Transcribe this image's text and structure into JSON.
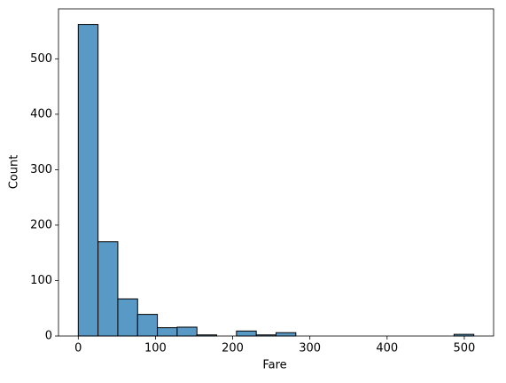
{
  "chart_data": {
    "type": "histogram",
    "xlabel": "Fare",
    "ylabel": "Count",
    "bins": [
      0,
      25.6165,
      51.2329,
      76.8494,
      102.4658,
      128.0823,
      153.6988,
      179.3152,
      204.9317,
      230.5481,
      256.1646,
      281.7811,
      307.3975,
      333.014,
      358.6304,
      384.2469,
      409.8634,
      435.4798,
      461.0963,
      486.7127,
      512.3292
    ],
    "values": [
      562,
      170,
      67,
      39,
      15,
      16,
      2,
      0,
      9,
      2,
      6,
      0,
      0,
      0,
      0,
      0,
      0,
      0,
      0,
      3
    ],
    "color": "#5899c6",
    "edgecolor": "#000000",
    "xlim": [
      -25.6165,
      537.9457
    ],
    "ylim": [
      0,
      590.1
    ],
    "xticks": [
      0,
      100,
      200,
      300,
      400,
      500
    ],
    "yticks": [
      0,
      100,
      200,
      300,
      400,
      500
    ]
  }
}
